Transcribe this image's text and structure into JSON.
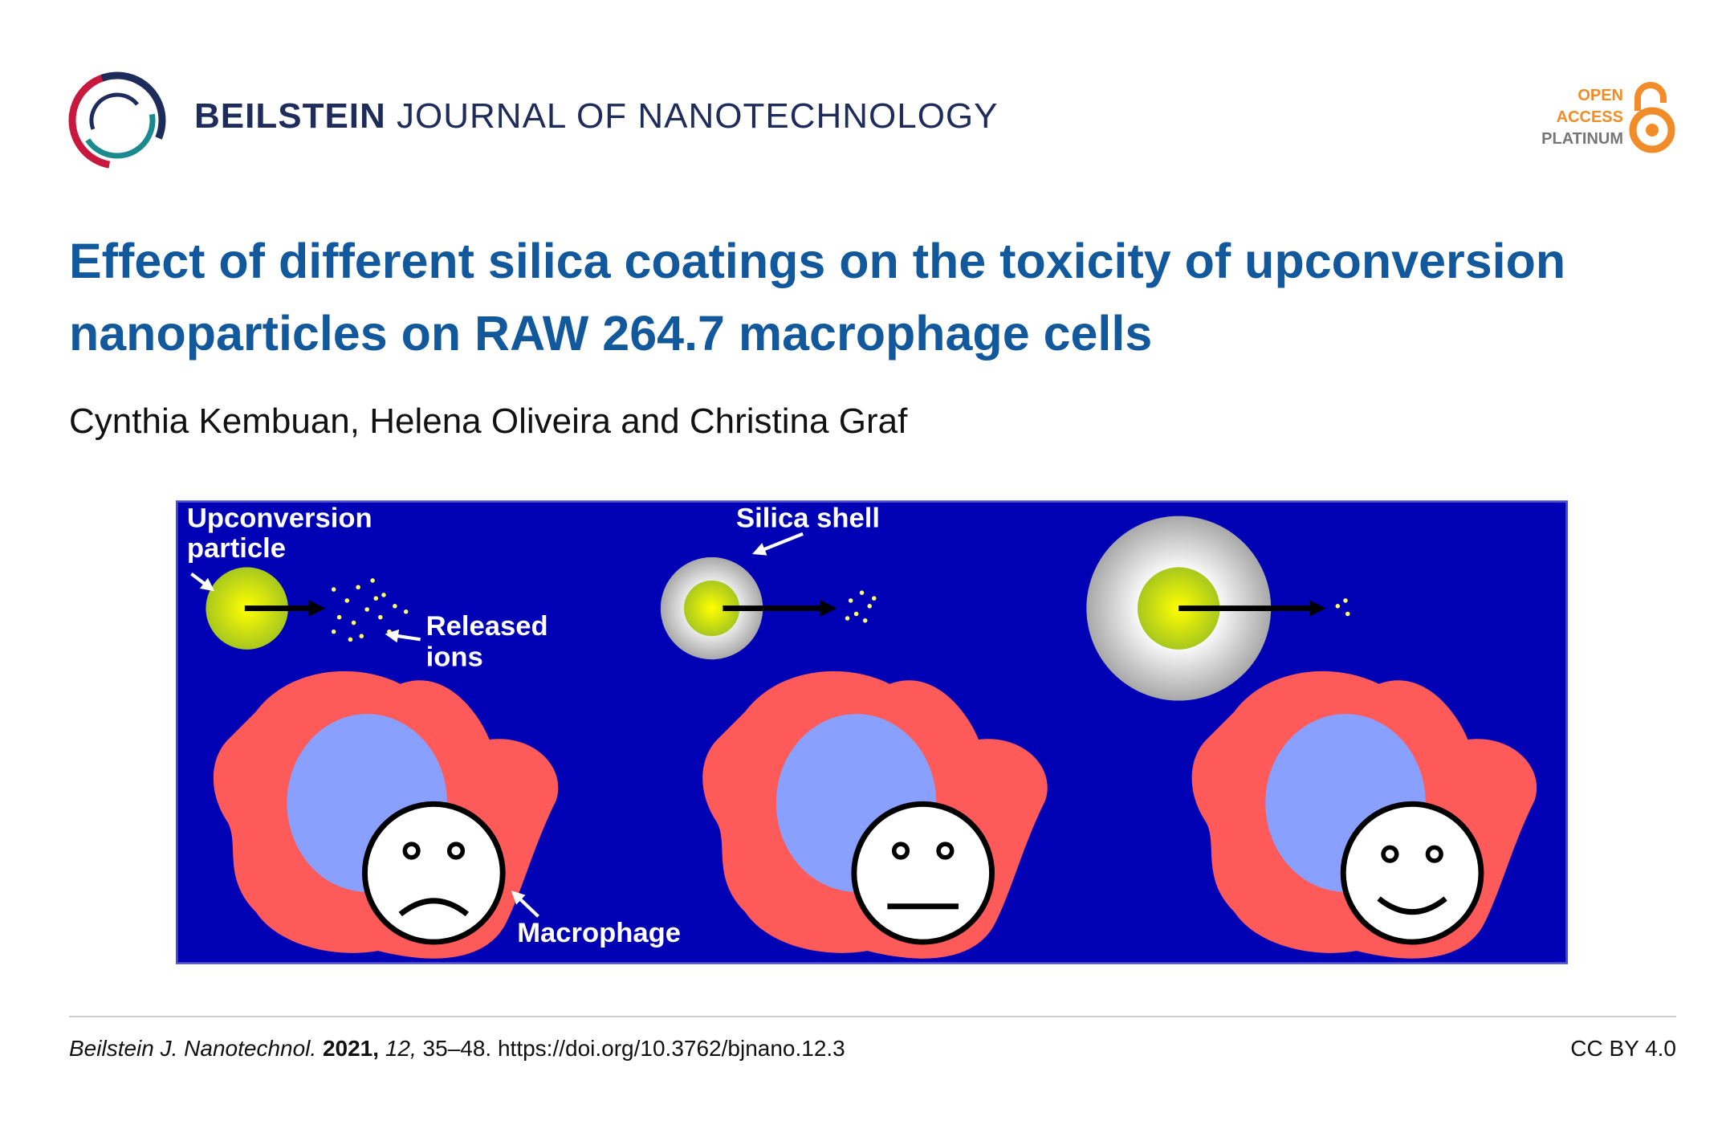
{
  "header": {
    "journal_name_bold": "BEILSTEIN",
    "journal_name_rest": "JOURNAL OF NANOTECHNOLOGY",
    "badge": [
      "OPEN",
      "ACCESS",
      "PLATINUM"
    ]
  },
  "article": {
    "title": "Effect of different silica coatings on the toxicity of upconversion nanoparticles on RAW 264.7 macrophage cells",
    "authors": "Cynthia Kembuan, Helena Oliveira and Christina Graf"
  },
  "figure": {
    "labels": {
      "upconversion_particle": [
        "Upconversion",
        "particle"
      ],
      "released_ions": [
        "Released",
        "ions"
      ],
      "silica_shell": "Silica shell",
      "macrophage": "Macrophage"
    }
  },
  "footer": {
    "journal": "Beilstein J. Nanotechnol.",
    "year": "2021,",
    "volume": "12,",
    "pages": "35–48.",
    "doi": "https://doi.org/10.3762/bjnano.12.3",
    "license": "CC BY 4.0"
  }
}
